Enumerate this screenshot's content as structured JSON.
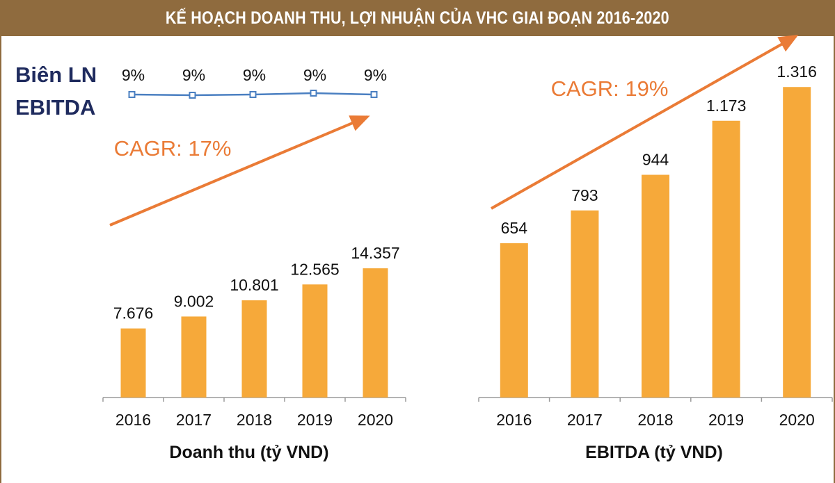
{
  "title": "KẾ HOẠCH DOANH THU, LỢI NHUẬN CỦA VHC GIAI ĐOẠN 2016-2020",
  "colors": {
    "header": "#8f6b3e",
    "bar": "#f6a93a",
    "trend": "#ea7b36",
    "margin_line": "#4a7fc1",
    "margin_title": "#1f2b5e"
  },
  "margin_title_lines": [
    "Biên LN",
    "EBITDA"
  ],
  "chart_data": [
    {
      "type": "bar",
      "title": "",
      "xlabel": "Doanh thu (tỷ VND)",
      "ylabel": "",
      "categories": [
        "2016",
        "2017",
        "2018",
        "2019",
        "2020"
      ],
      "values": [
        7676,
        9002,
        10801,
        12565,
        14357
      ],
      "value_labels": [
        "7.676",
        "9.002",
        "10.801",
        "12.565",
        "14.357"
      ],
      "annotation": "CAGR: 17%",
      "grid": false,
      "overlay_line": {
        "name": "Biên LN EBITDA",
        "values": [
          9,
          9,
          9,
          9,
          9
        ],
        "labels": [
          "9%",
          "9%",
          "9%",
          "9%",
          "9%"
        ]
      }
    },
    {
      "type": "bar",
      "title": "",
      "xlabel": "EBITDA (tỷ VND)",
      "ylabel": "",
      "categories": [
        "2016",
        "2017",
        "2018",
        "2019",
        "2020"
      ],
      "values": [
        654,
        793,
        944,
        1173,
        1316
      ],
      "value_labels": [
        "654",
        "793",
        "944",
        "1.173",
        "1.316"
      ],
      "annotation": "CAGR: 19%",
      "grid": false
    }
  ]
}
